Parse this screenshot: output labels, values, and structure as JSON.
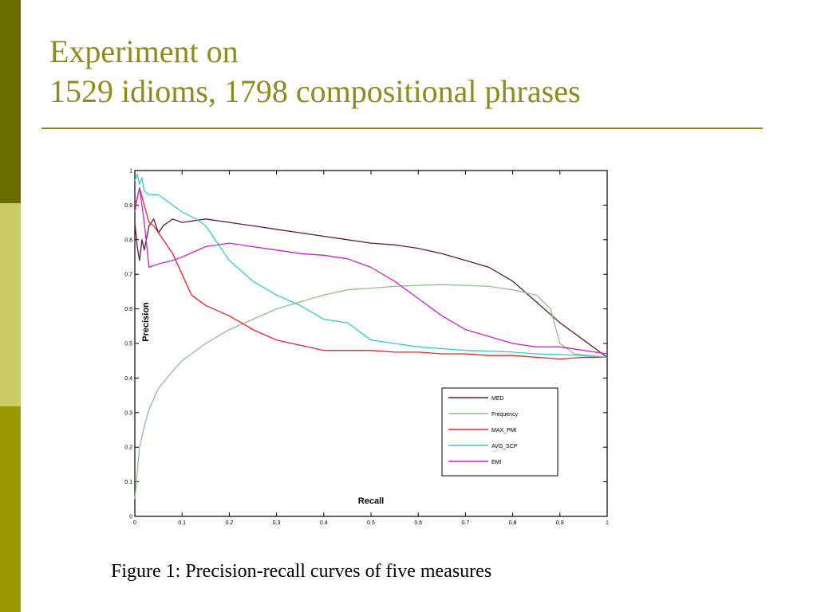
{
  "slide": {
    "title_line1": "Experiment on",
    "title_line2": "1529 idioms, 1798 compositional phrases",
    "caption": "Figure 1: Precision-recall curves of five measures",
    "colors": {
      "title": "#8c8c1a",
      "sidebar_dark": "#6b6b00",
      "sidebar_light": "#cccc66",
      "sidebar_mid": "#999900"
    }
  },
  "chart_data": {
    "type": "line",
    "title": "",
    "xlabel": "Recall",
    "ylabel": "Precision",
    "xlim": [
      0,
      1
    ],
    "ylim": [
      0,
      1
    ],
    "xticks": [
      0,
      0.1,
      0.2,
      0.3,
      0.4,
      0.5,
      0.6,
      0.7,
      0.8,
      0.9,
      1
    ],
    "yticks": [
      0,
      0.1,
      0.2,
      0.3,
      0.4,
      0.5,
      0.6,
      0.7,
      0.8,
      0.9,
      1
    ],
    "xtick_labels": [
      "0",
      "0.1",
      "0.2",
      "0.3",
      "0.4",
      "0.5",
      "0.6",
      "0.7",
      "0.8",
      "0.9",
      "1"
    ],
    "ytick_labels": [
      "0",
      "0.1",
      "0.2",
      "0.3",
      "0.4",
      "0.5",
      "0.6",
      "0.7",
      "0.8",
      "0.9",
      "1"
    ],
    "grid": false,
    "legend_position": "bottom-right",
    "series": [
      {
        "name": "MED",
        "color": "#5a1a4a",
        "x": [
          0,
          0.005,
          0.01,
          0.015,
          0.02,
          0.03,
          0.04,
          0.05,
          0.06,
          0.08,
          0.1,
          0.15,
          0.2,
          0.25,
          0.3,
          0.35,
          0.4,
          0.45,
          0.5,
          0.55,
          0.6,
          0.65,
          0.7,
          0.75,
          0.8,
          0.85,
          0.9,
          0.95,
          1.0
        ],
        "y": [
          0.85,
          0.78,
          0.74,
          0.8,
          0.77,
          0.84,
          0.86,
          0.82,
          0.84,
          0.86,
          0.85,
          0.86,
          0.85,
          0.84,
          0.83,
          0.82,
          0.81,
          0.8,
          0.79,
          0.785,
          0.775,
          0.76,
          0.74,
          0.72,
          0.68,
          0.62,
          0.56,
          0.51,
          0.46
        ]
      },
      {
        "name": "Frequency",
        "color": "#8fbf8f",
        "x": [
          0,
          0.01,
          0.02,
          0.03,
          0.05,
          0.08,
          0.1,
          0.15,
          0.2,
          0.25,
          0.3,
          0.35,
          0.4,
          0.45,
          0.5,
          0.55,
          0.6,
          0.65,
          0.7,
          0.75,
          0.8,
          0.85,
          0.88,
          0.9,
          0.93,
          0.96,
          1.0
        ],
        "y": [
          0.05,
          0.2,
          0.26,
          0.31,
          0.37,
          0.42,
          0.45,
          0.5,
          0.54,
          0.57,
          0.6,
          0.62,
          0.64,
          0.655,
          0.66,
          0.665,
          0.668,
          0.67,
          0.668,
          0.665,
          0.655,
          0.64,
          0.6,
          0.5,
          0.47,
          0.465,
          0.46
        ]
      },
      {
        "name": "MAX_PMI",
        "color": "#ee2222",
        "x": [
          0,
          0.005,
          0.01,
          0.02,
          0.03,
          0.04,
          0.05,
          0.06,
          0.08,
          0.1,
          0.12,
          0.15,
          0.2,
          0.25,
          0.3,
          0.35,
          0.4,
          0.45,
          0.5,
          0.55,
          0.6,
          0.65,
          0.7,
          0.75,
          0.8,
          0.85,
          0.9,
          0.95,
          1.0
        ],
        "y": [
          0.9,
          0.92,
          0.95,
          0.9,
          0.85,
          0.84,
          0.82,
          0.8,
          0.76,
          0.7,
          0.64,
          0.61,
          0.58,
          0.54,
          0.51,
          0.495,
          0.48,
          0.48,
          0.48,
          0.475,
          0.475,
          0.47,
          0.47,
          0.465,
          0.465,
          0.46,
          0.455,
          0.46,
          0.46
        ]
      },
      {
        "name": "AVG_SCP",
        "color": "#33cccc",
        "x": [
          0,
          0.005,
          0.01,
          0.015,
          0.02,
          0.03,
          0.05,
          0.08,
          0.1,
          0.13,
          0.15,
          0.2,
          0.25,
          0.3,
          0.35,
          0.4,
          0.45,
          0.5,
          0.55,
          0.6,
          0.65,
          0.7,
          0.75,
          0.8,
          0.85,
          0.9,
          0.95,
          1.0
        ],
        "y": [
          0.97,
          0.99,
          0.96,
          0.98,
          0.94,
          0.93,
          0.93,
          0.9,
          0.88,
          0.86,
          0.84,
          0.74,
          0.68,
          0.64,
          0.61,
          0.57,
          0.56,
          0.51,
          0.5,
          0.49,
          0.485,
          0.48,
          0.478,
          0.475,
          0.47,
          0.468,
          0.465,
          0.46
        ]
      },
      {
        "name": "EMI",
        "color": "#cc22cc",
        "x": [
          0,
          0.005,
          0.01,
          0.02,
          0.03,
          0.05,
          0.08,
          0.1,
          0.15,
          0.2,
          0.25,
          0.3,
          0.35,
          0.4,
          0.45,
          0.5,
          0.55,
          0.6,
          0.65,
          0.7,
          0.75,
          0.8,
          0.85,
          0.9,
          0.95,
          1.0
        ],
        "y": [
          0.88,
          0.92,
          0.95,
          0.85,
          0.72,
          0.73,
          0.74,
          0.75,
          0.78,
          0.79,
          0.78,
          0.77,
          0.76,
          0.755,
          0.745,
          0.72,
          0.68,
          0.63,
          0.58,
          0.54,
          0.52,
          0.5,
          0.49,
          0.49,
          0.48,
          0.47
        ]
      }
    ]
  }
}
